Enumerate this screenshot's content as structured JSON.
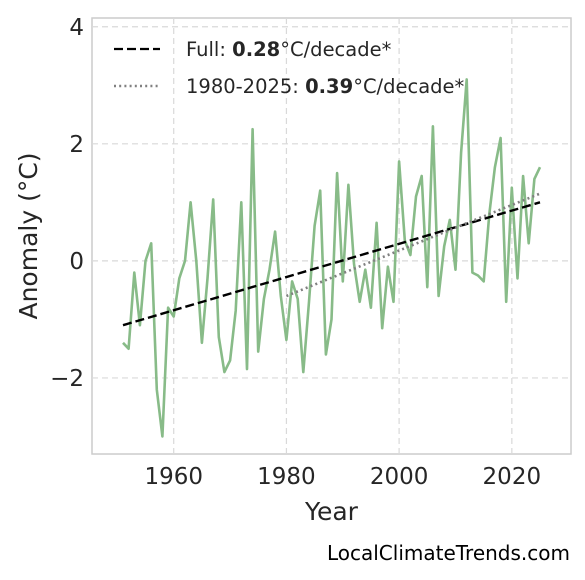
{
  "chart_data": {
    "type": "line",
    "xlabel": "Year",
    "ylabel": "Anomaly (°C)",
    "xlim": [
      1945.5,
      2030.5
    ],
    "ylim": [
      -3.3,
      4.15
    ],
    "xticks": [
      1960,
      1980,
      2000,
      2020
    ],
    "yticks": [
      -2,
      0,
      2,
      4
    ],
    "ytick_labels": [
      "−2",
      "0",
      "2",
      "4"
    ],
    "grid": true,
    "legend_position": "top-left",
    "colors": {
      "anomaly": "#88bb88",
      "full_trend": "#000000",
      "recent_trend": "#808080"
    },
    "series": [
      {
        "style": "solid",
        "x": [
          1951,
          1952,
          1953,
          1954,
          1955,
          1956,
          1957,
          1958,
          1959,
          1960,
          1961,
          1962,
          1963,
          1964,
          1965,
          1966,
          1967,
          1968,
          1969,
          1970,
          1971,
          1972,
          1973,
          1974,
          1975,
          1976,
          1977,
          1978,
          1979,
          1980,
          1981,
          1982,
          1983,
          1984,
          1985,
          1986,
          1987,
          1988,
          1989,
          1990,
          1991,
          1992,
          1993,
          1994,
          1995,
          1996,
          1997,
          1998,
          1999,
          2000,
          2001,
          2002,
          2003,
          2004,
          2005,
          2006,
          2007,
          2008,
          2009,
          2010,
          2011,
          2012,
          2013,
          2014,
          2015,
          2016,
          2017,
          2018,
          2019,
          2020,
          2021,
          2022,
          2023,
          2024,
          2025
        ],
        "values": [
          -1.4,
          -1.5,
          -0.2,
          -1.1,
          0.0,
          0.3,
          -2.2,
          -3.0,
          -0.8,
          -0.95,
          -0.3,
          0.0,
          1.0,
          0.0,
          -1.4,
          -0.3,
          1.05,
          -1.3,
          -1.9,
          -1.7,
          -0.85,
          1.0,
          -1.85,
          2.25,
          -1.55,
          -0.65,
          -0.15,
          0.5,
          -0.6,
          -1.35,
          -0.35,
          -0.65,
          -1.9,
          -0.7,
          0.6,
          1.2,
          -1.6,
          -1.0,
          1.5,
          -0.35,
          1.3,
          -0.05,
          -0.7,
          -0.15,
          -0.8,
          0.65,
          -1.15,
          -0.1,
          -0.7,
          1.7,
          0.35,
          0.1,
          1.1,
          1.45,
          -0.45,
          2.3,
          -0.6,
          0.25,
          0.7,
          -0.15,
          1.85,
          3.1,
          -0.2,
          -0.25,
          -0.35,
          0.8,
          1.6,
          2.1,
          -0.7,
          1.25,
          -0.3,
          1.45,
          0.3,
          1.4,
          1.6
        ]
      },
      {
        "name_parts": [
          "Full: ",
          "0.28",
          "°C/decade*"
        ],
        "style": "dashed",
        "x": [
          1951,
          2025
        ],
        "values": [
          -1.1,
          1.0
        ]
      },
      {
        "name_parts": [
          "1980-2025: ",
          "0.39",
          "°C/decade*"
        ],
        "style": "dotted",
        "x": [
          1980,
          2025
        ],
        "values": [
          -0.6,
          1.15
        ]
      }
    ],
    "credit": "LocalClimateTrends.com"
  }
}
